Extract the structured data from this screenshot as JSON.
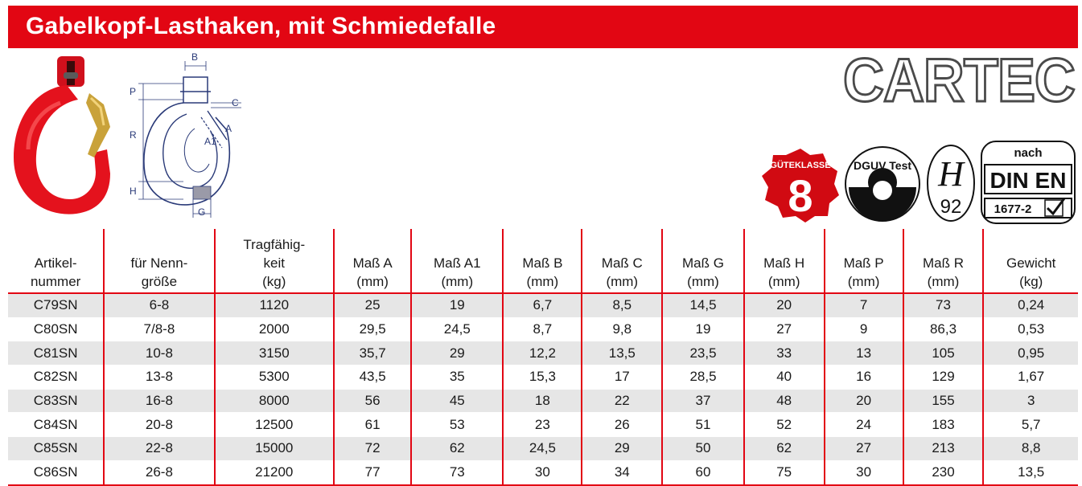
{
  "header": {
    "title": "Gabelkopf-Lasthaken, mit Schmiedefalle"
  },
  "brand": {
    "logo_text": "CARTEC",
    "accent": "#e20613"
  },
  "drawing": {
    "labels": [
      "B",
      "P",
      "C",
      "R",
      "A",
      "A1",
      "H",
      "G"
    ]
  },
  "badges": {
    "guteklasse": {
      "top": "GÜTEKLASSE",
      "number": "8"
    },
    "dguv": {
      "text": "DGUV Test"
    },
    "h92": {
      "letter": "H",
      "number": "92"
    },
    "din": {
      "top": "nach",
      "main": "DIN EN",
      "sub": "1677-2"
    }
  },
  "table": {
    "columns": [
      [
        "Artikel-",
        "nummer"
      ],
      [
        "für Nenn-",
        "größe"
      ],
      [
        "Tragfähig-",
        "keit",
        "(kg)"
      ],
      [
        "Maß A",
        "(mm)"
      ],
      [
        "Maß A1",
        "(mm)"
      ],
      [
        "Maß B",
        "(mm)"
      ],
      [
        "Maß C",
        "(mm)"
      ],
      [
        "Maß G",
        "(mm)"
      ],
      [
        "Maß H",
        "(mm)"
      ],
      [
        "Maß P",
        "(mm)"
      ],
      [
        "Maß R",
        "(mm)"
      ],
      [
        "Gewicht",
        "(kg)"
      ]
    ],
    "rows": [
      [
        "C79SN",
        "6-8",
        "1120",
        "25",
        "19",
        "6,7",
        "8,5",
        "14,5",
        "20",
        "7",
        "73",
        "0,24"
      ],
      [
        "C80SN",
        "7/8-8",
        "2000",
        "29,5",
        "24,5",
        "8,7",
        "9,8",
        "19",
        "27",
        "9",
        "86,3",
        "0,53"
      ],
      [
        "C81SN",
        "10-8",
        "3150",
        "35,7",
        "29",
        "12,2",
        "13,5",
        "23,5",
        "33",
        "13",
        "105",
        "0,95"
      ],
      [
        "C82SN",
        "13-8",
        "5300",
        "43,5",
        "35",
        "15,3",
        "17",
        "28,5",
        "40",
        "16",
        "129",
        "1,67"
      ],
      [
        "C83SN",
        "16-8",
        "8000",
        "56",
        "45",
        "18",
        "22",
        "37",
        "48",
        "20",
        "155",
        "3"
      ],
      [
        "C84SN",
        "20-8",
        "12500",
        "61",
        "53",
        "23",
        "26",
        "51",
        "52",
        "24",
        "183",
        "5,7"
      ],
      [
        "C85SN",
        "22-8",
        "15000",
        "72",
        "62",
        "24,5",
        "29",
        "50",
        "62",
        "27",
        "213",
        "8,8"
      ],
      [
        "C86SN",
        "26-8",
        "21200",
        "77",
        "73",
        "30",
        "34",
        "60",
        "75",
        "30",
        "230",
        "13,5"
      ]
    ]
  }
}
